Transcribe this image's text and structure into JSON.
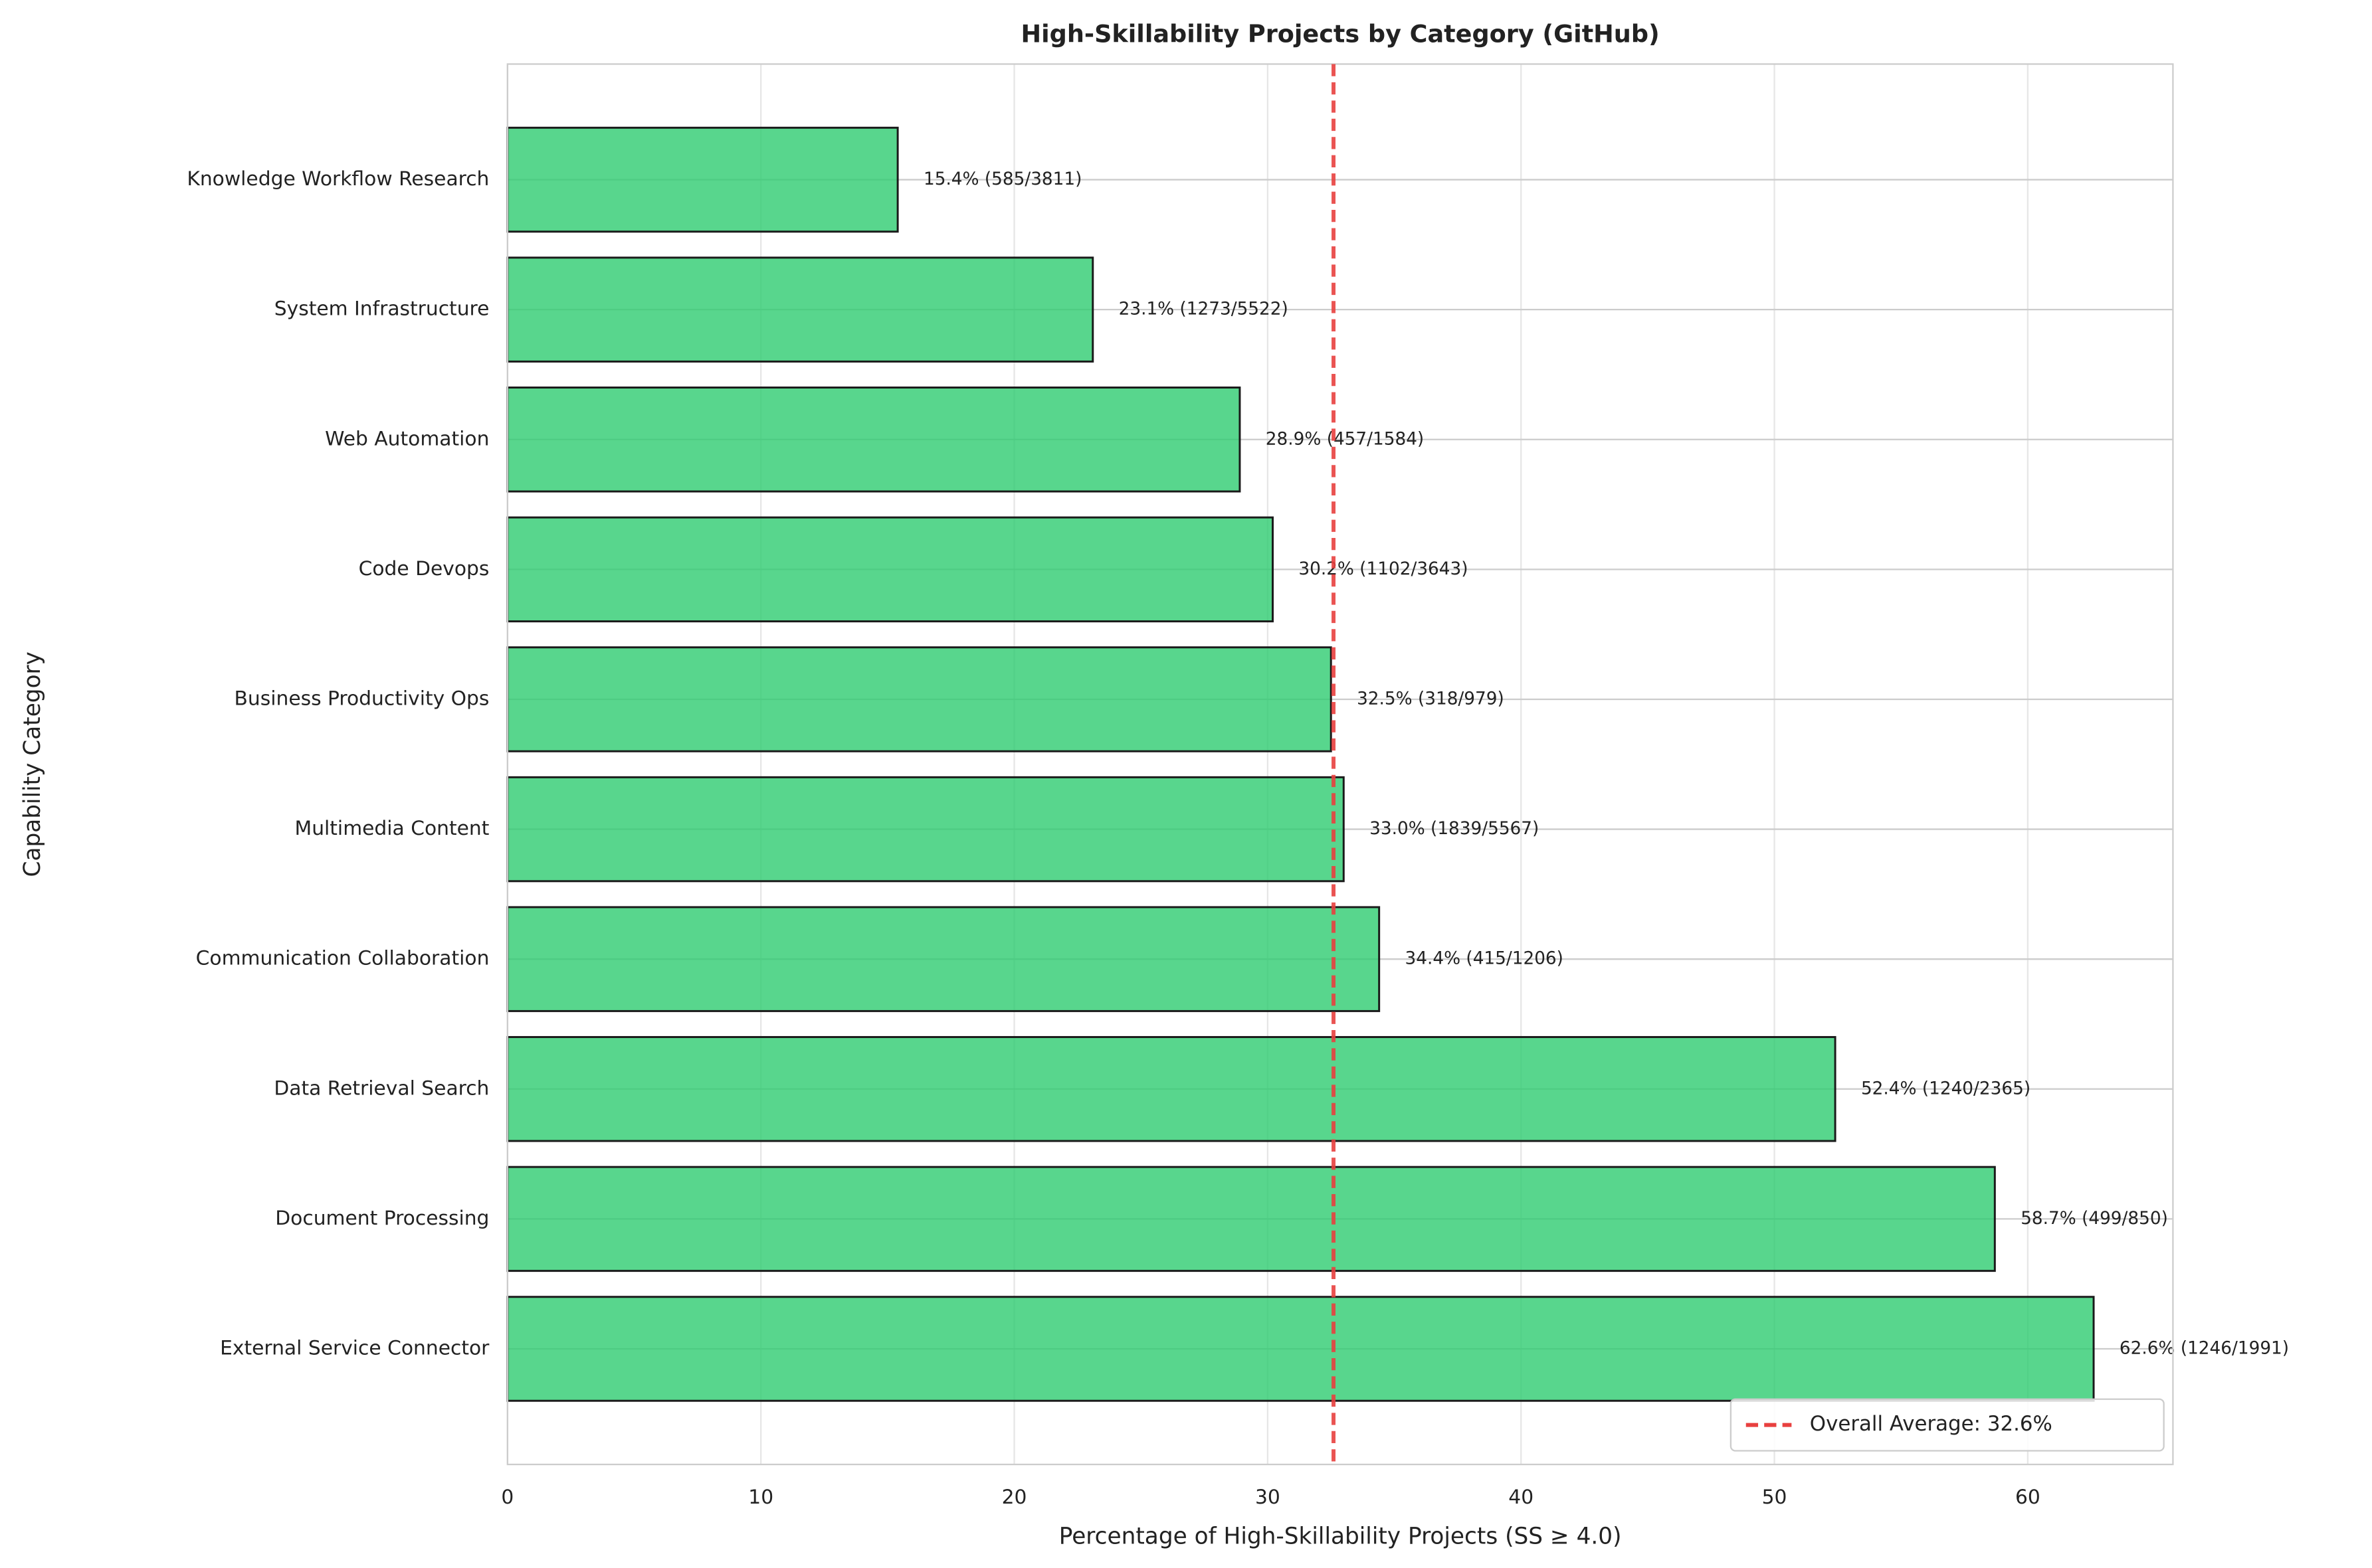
{
  "chart_data": {
    "type": "barh",
    "title": "High-Skillability Projects by Category (GitHub)",
    "xlabel": "Percentage of High-Skillability Projects (SS ≥ 4.0)",
    "ylabel": "Capability Category",
    "categories": [
      "Knowledge Workflow Research",
      "System Infrastructure",
      "Web Automation",
      "Code Devops",
      "Business Productivity Ops",
      "Multimedia Content",
      "Communication Collaboration",
      "Data Retrieval Search",
      "Document Processing",
      "External Service Connector"
    ],
    "values": [
      15.4,
      23.1,
      28.9,
      30.2,
      32.5,
      33.0,
      34.4,
      52.4,
      58.7,
      62.6
    ],
    "value_labels": [
      "15.4% (585/3811)",
      "23.1% (1273/5522)",
      "28.9% (457/1584)",
      "30.2% (1102/3643)",
      "32.5% (318/979)",
      "33.0% (1839/5567)",
      "34.4% (415/1206)",
      "52.4% (1240/2365)",
      "58.7% (499/850)",
      "62.6% (1246/1991)"
    ],
    "color": "#2ecc71",
    "average_line": {
      "value": 32.6,
      "label": "Overall Average: 32.6%",
      "color": "#e8403f"
    },
    "xlim": [
      0,
      65.73
    ],
    "xticks": [
      0,
      10,
      20,
      30,
      40,
      50,
      60
    ],
    "grid": true,
    "legend_location": "lower right"
  }
}
